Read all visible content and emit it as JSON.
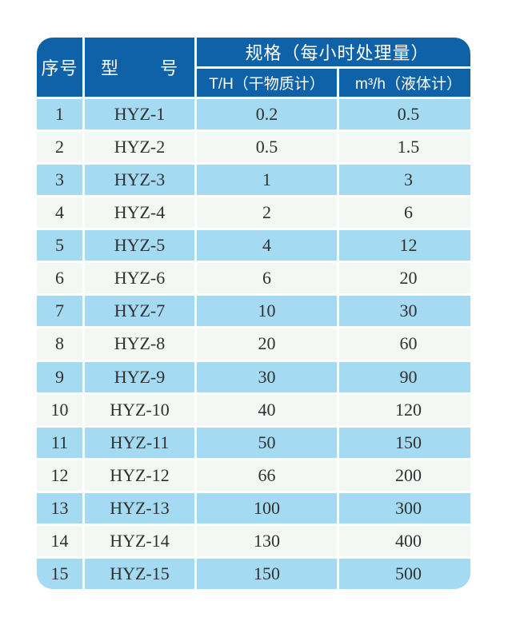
{
  "table": {
    "headers": {
      "index": "序号",
      "model": "型 号",
      "spec_group": "规格（每小时处理量）",
      "th_dry": "T/H（干物质计）",
      "m3h_liquid": "m³/h（液体计）"
    },
    "rows": [
      {
        "index": "1",
        "model": "HYZ-1",
        "th": "0.2",
        "m3h": "0.5"
      },
      {
        "index": "2",
        "model": "HYZ-2",
        "th": "0.5",
        "m3h": "1.5"
      },
      {
        "index": "3",
        "model": "HYZ-3",
        "th": "1",
        "m3h": "3"
      },
      {
        "index": "4",
        "model": "HYZ-4",
        "th": "2",
        "m3h": "6"
      },
      {
        "index": "5",
        "model": "HYZ-5",
        "th": "4",
        "m3h": "12"
      },
      {
        "index": "6",
        "model": "HYZ-6",
        "th": "6",
        "m3h": "20"
      },
      {
        "index": "7",
        "model": "HYZ-7",
        "th": "10",
        "m3h": "30"
      },
      {
        "index": "8",
        "model": "HYZ-8",
        "th": "20",
        "m3h": "60"
      },
      {
        "index": "9",
        "model": "HYZ-9",
        "th": "30",
        "m3h": "90"
      },
      {
        "index": "10",
        "model": "HYZ-10",
        "th": "40",
        "m3h": "120"
      },
      {
        "index": "11",
        "model": "HYZ-11",
        "th": "50",
        "m3h": "150"
      },
      {
        "index": "12",
        "model": "HYZ-12",
        "th": "66",
        "m3h": "200"
      },
      {
        "index": "13",
        "model": "HYZ-13",
        "th": "100",
        "m3h": "300"
      },
      {
        "index": "14",
        "model": "HYZ-14",
        "th": "130",
        "m3h": "400"
      },
      {
        "index": "15",
        "model": "HYZ-15",
        "th": "150",
        "m3h": "500"
      }
    ]
  },
  "colors": {
    "page_bg": "#ffffff",
    "header_bg": "#0f62a7",
    "header_text": "#ffffff",
    "row_blue": "#a5daf3",
    "row_light": "#f4f8f5",
    "divider": "#ffffff",
    "body_text": "#303030"
  }
}
